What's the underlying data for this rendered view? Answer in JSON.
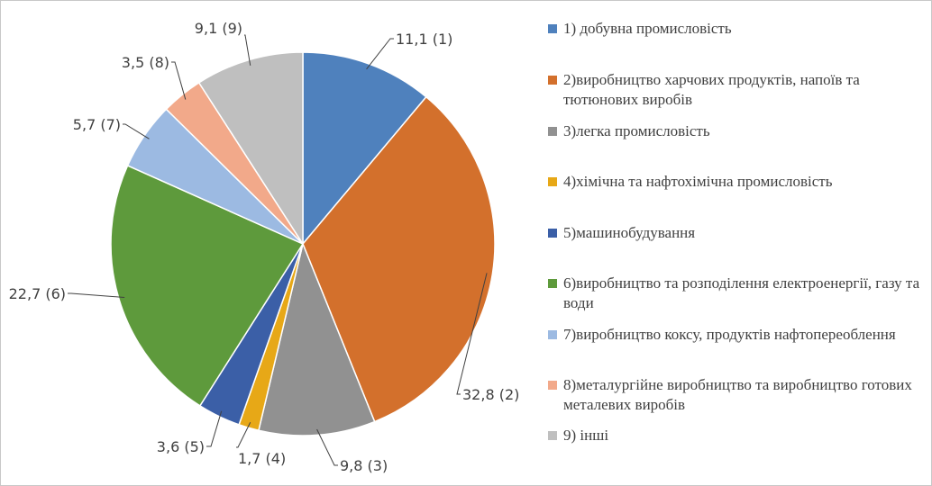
{
  "chart_data": {
    "type": "pie",
    "slices": [
      {
        "label": "11,1 (1)",
        "value": 11.1,
        "color": "#4f81bd",
        "legend": "1) добувна промисловість"
      },
      {
        "label": "32,8 (2)",
        "value": 32.8,
        "color": "#d3702c",
        "legend": "2)виробництво харчових продуктів, напоїв та тютюнових виробів"
      },
      {
        "label": "9,8 (3)",
        "value": 9.8,
        "color": "#919191",
        "legend": "3)легка промисловість"
      },
      {
        "label": "1,7 (4)",
        "value": 1.7,
        "color": "#e7a817",
        "legend": "4)хімічна та нафтохімічна промисловість"
      },
      {
        "label": "3,6 (5)",
        "value": 3.6,
        "color": "#3b5fa7",
        "legend": "5)машинобудування"
      },
      {
        "label": "22,7 (6)",
        "value": 22.7,
        "color": "#5e9a3c",
        "legend": "6)виробництво та розподілення електроенергії, газу та води"
      },
      {
        "label": "5,7 (7)",
        "value": 5.7,
        "color": "#9cbae2",
        "legend": "7)виробництво коксу, продуктів нафтопереоблення"
      },
      {
        "label": "3,5 (8)",
        "value": 3.5,
        "color": "#f2a98a",
        "legend": "8)металургійне виробництво та виробництво готових металевих виробів"
      },
      {
        "label": "9,1 (9)",
        "value": 9.1,
        "color": "#bfbfbf",
        "legend": "9) інші"
      }
    ],
    "legend_position": "right",
    "start_angle": "12 o'clock",
    "direction": "clockwise"
  }
}
